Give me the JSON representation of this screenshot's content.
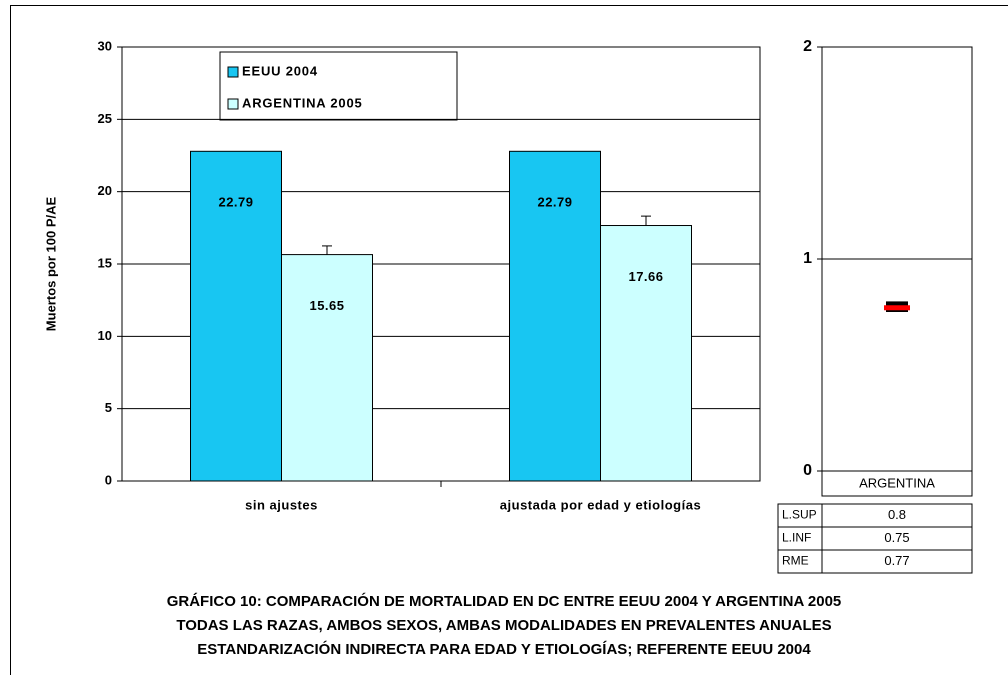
{
  "chart_data": [
    {
      "type": "bar",
      "ylabel": "Muertos por 100 P/AE",
      "categories": [
        "sin ajustes",
        "ajustada por edad y etiologías"
      ],
      "series": [
        {
          "name": "EEUU 2004",
          "color": "#18c6f2",
          "values": [
            22.79,
            22.79
          ]
        },
        {
          "name": "ARGENTINA 2005",
          "color": "#ccffff",
          "values": [
            15.65,
            17.66
          ],
          "errors": [
            0.6,
            0.65
          ]
        }
      ],
      "ylim": [
        0,
        30
      ],
      "yticks": [
        0,
        5,
        10,
        15,
        20,
        25,
        30
      ],
      "grid": true,
      "legend": "top-left"
    },
    {
      "type": "interval",
      "categories": [
        "ARGENTINA"
      ],
      "values": [
        0.77
      ],
      "lower": [
        0.75
      ],
      "upper": [
        0.8
      ],
      "color": "#ff0000",
      "row_labels": [
        "L.SUP",
        "L.INF",
        "RME"
      ],
      "ylim": [
        0,
        2
      ],
      "yticks": [
        0,
        1,
        2
      ],
      "grid": true
    }
  ],
  "caption": [
    "GRÁFICO 10:  COMPARACIÓN DE  MORTALIDAD EN DC  ENTRE EEUU 2004 Y ARGENTINA 2005",
    "TODAS LAS RAZAS, AMBOS SEXOS, AMBAS MODALIDADES EN PREVALENTES ANUALES",
    "ESTANDARIZACIÓN INDIRECTA PARA EDAD Y ETIOLOGÍAS; REFERENTE EEUU 2004"
  ]
}
